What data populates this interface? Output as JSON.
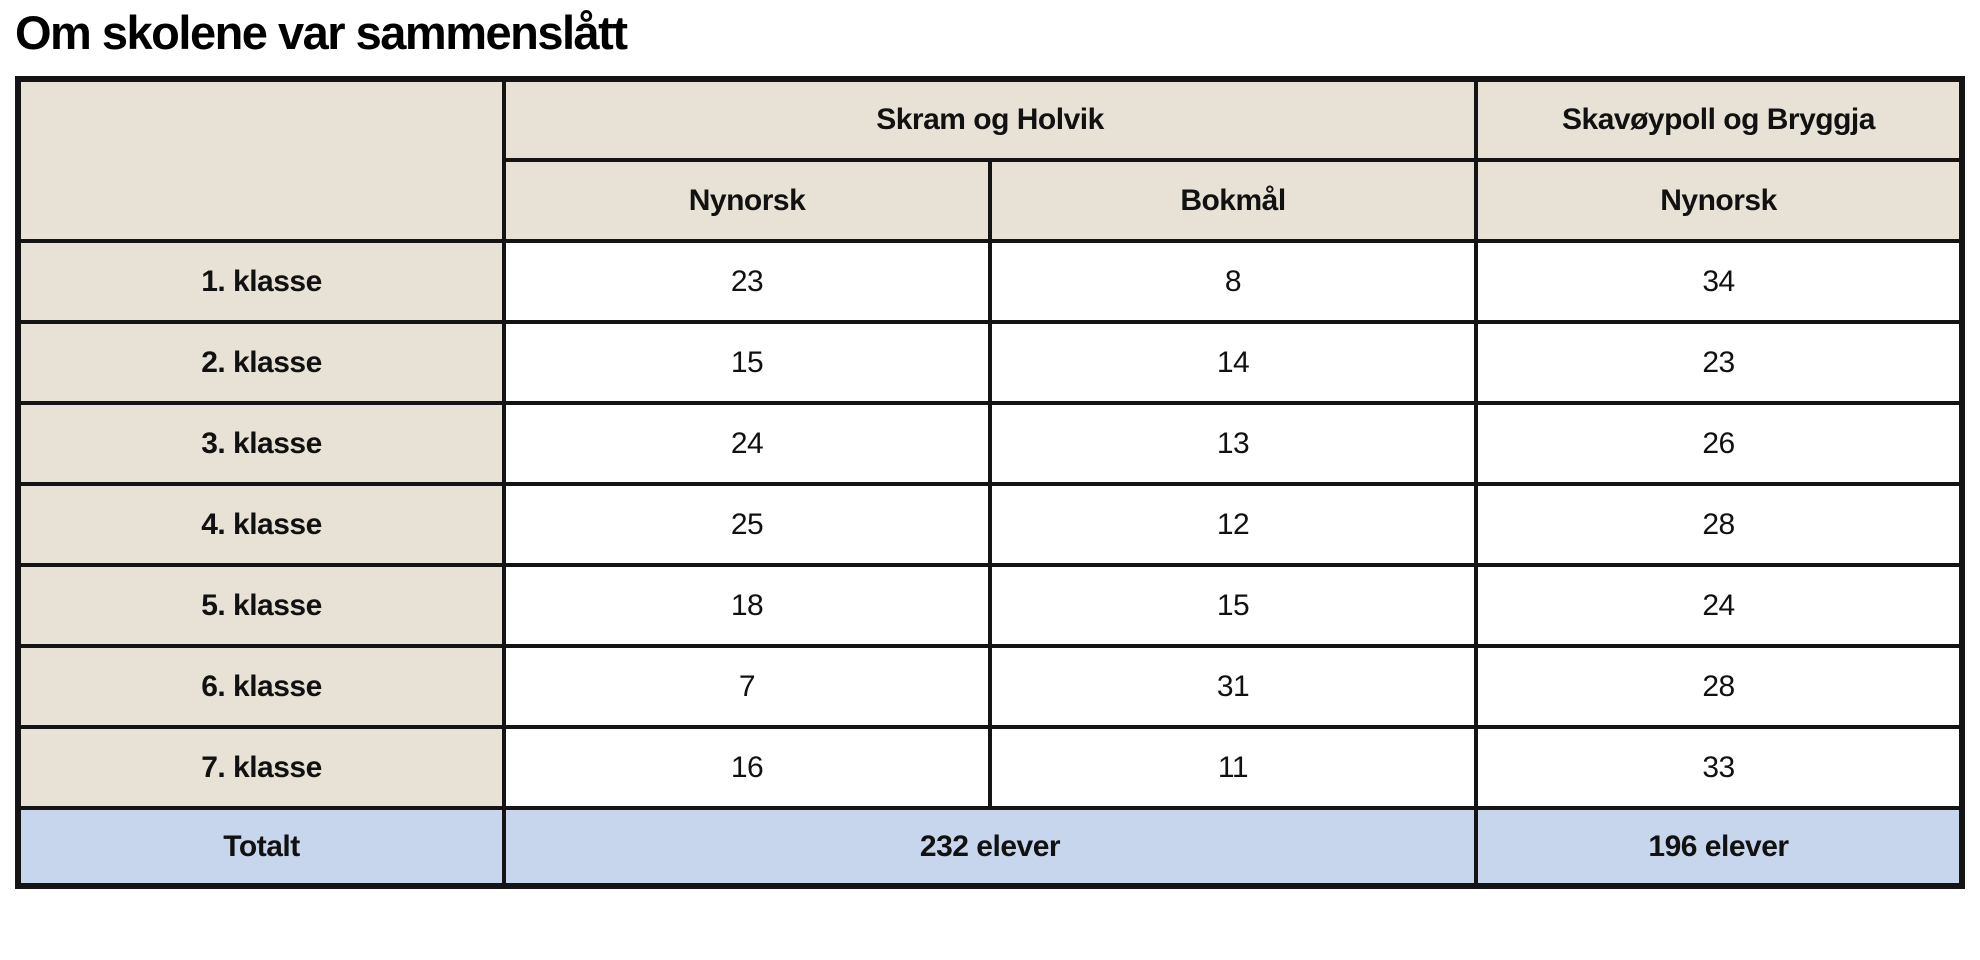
{
  "title": "Om skolene var sammenslått",
  "colors": {
    "header_bg": "#e8e2d6",
    "total_bg": "#c7d5ed",
    "cell_bg": "#ffffff",
    "border": "#141414",
    "text": "#111111"
  },
  "table": {
    "group_headers": [
      {
        "label": "Skram og Holvik"
      },
      {
        "label": "Skavøypoll og Bryggja"
      }
    ],
    "sub_headers": [
      "Nynorsk",
      "Bokmål",
      "Nynorsk"
    ],
    "rows": [
      {
        "label": "1. klasse",
        "values": [
          "23",
          "8",
          "34"
        ]
      },
      {
        "label": "2. klasse",
        "values": [
          "15",
          "14",
          "23"
        ]
      },
      {
        "label": "3. klasse",
        "values": [
          "24",
          "13",
          "26"
        ]
      },
      {
        "label": "4. klasse",
        "values": [
          "25",
          "12",
          "28"
        ]
      },
      {
        "label": "5. klasse",
        "values": [
          "18",
          "15",
          "24"
        ]
      },
      {
        "label": "6. klasse",
        "values": [
          "7",
          "31",
          "28"
        ]
      },
      {
        "label": "7. klasse",
        "values": [
          "16",
          "11",
          "33"
        ]
      }
    ],
    "total": {
      "label": "Totalt",
      "skram_holvik": "232 elever",
      "skavoypoll_bryggja": "196 elever"
    }
  },
  "chart_data": {
    "type": "table",
    "title": "Om skolene var sammenslått",
    "column_groups": [
      "Skram og Holvik",
      "Skram og Holvik",
      "Skavøypoll og Bryggja"
    ],
    "columns": [
      "Nynorsk (Skram og Holvik)",
      "Bokmål (Skram og Holvik)",
      "Nynorsk (Skavøypoll og Bryggja)"
    ],
    "row_labels": [
      "1. klasse",
      "2. klasse",
      "3. klasse",
      "4. klasse",
      "5. klasse",
      "6. klasse",
      "7. klasse"
    ],
    "values": [
      [
        23,
        8,
        34
      ],
      [
        15,
        14,
        23
      ],
      [
        24,
        13,
        26
      ],
      [
        25,
        12,
        28
      ],
      [
        18,
        15,
        24
      ],
      [
        7,
        31,
        28
      ],
      [
        16,
        11,
        33
      ]
    ],
    "totals": {
      "Skram og Holvik": "232 elever",
      "Skavøypoll og Bryggja": "196 elever"
    }
  }
}
